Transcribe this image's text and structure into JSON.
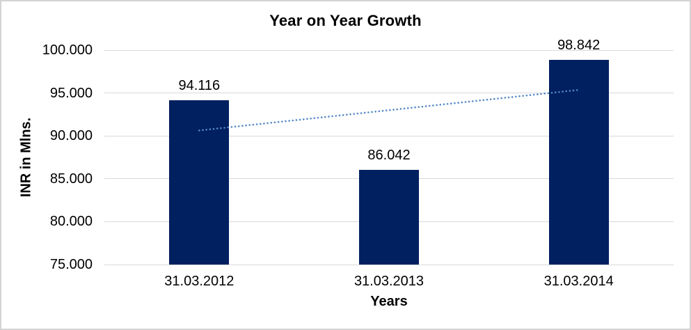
{
  "chart_data": {
    "type": "bar",
    "title": "Year on Year Growth",
    "xlabel": "Years",
    "ylabel": "INR in Mlns.",
    "categories": [
      "31.03.2012",
      "31.03.2013",
      "31.03.2014"
    ],
    "values": [
      94116,
      86042,
      98842
    ],
    "value_labels": [
      "94.116",
      "86.042",
      "98.842"
    ],
    "ylim": [
      75000,
      100000
    ],
    "yticks": [
      75000,
      80000,
      85000,
      90000,
      95000,
      100000
    ],
    "ytick_labels": [
      "75.000",
      "80.000",
      "85.000",
      "90.000",
      "95.000",
      "100.000"
    ],
    "grid": "horizontal",
    "legend": "none",
    "trendline": {
      "type": "linear",
      "style": "dotted",
      "start_value": 90637,
      "end_value": 95363
    },
    "colors": {
      "bar": "#002060",
      "trendline": "#5389C6",
      "gridline": "#D9D9D9",
      "axis_line": "#D9D9D9",
      "text": "#000000",
      "frame_border": "#D3D3D3",
      "background": "#FFFFFF"
    }
  }
}
